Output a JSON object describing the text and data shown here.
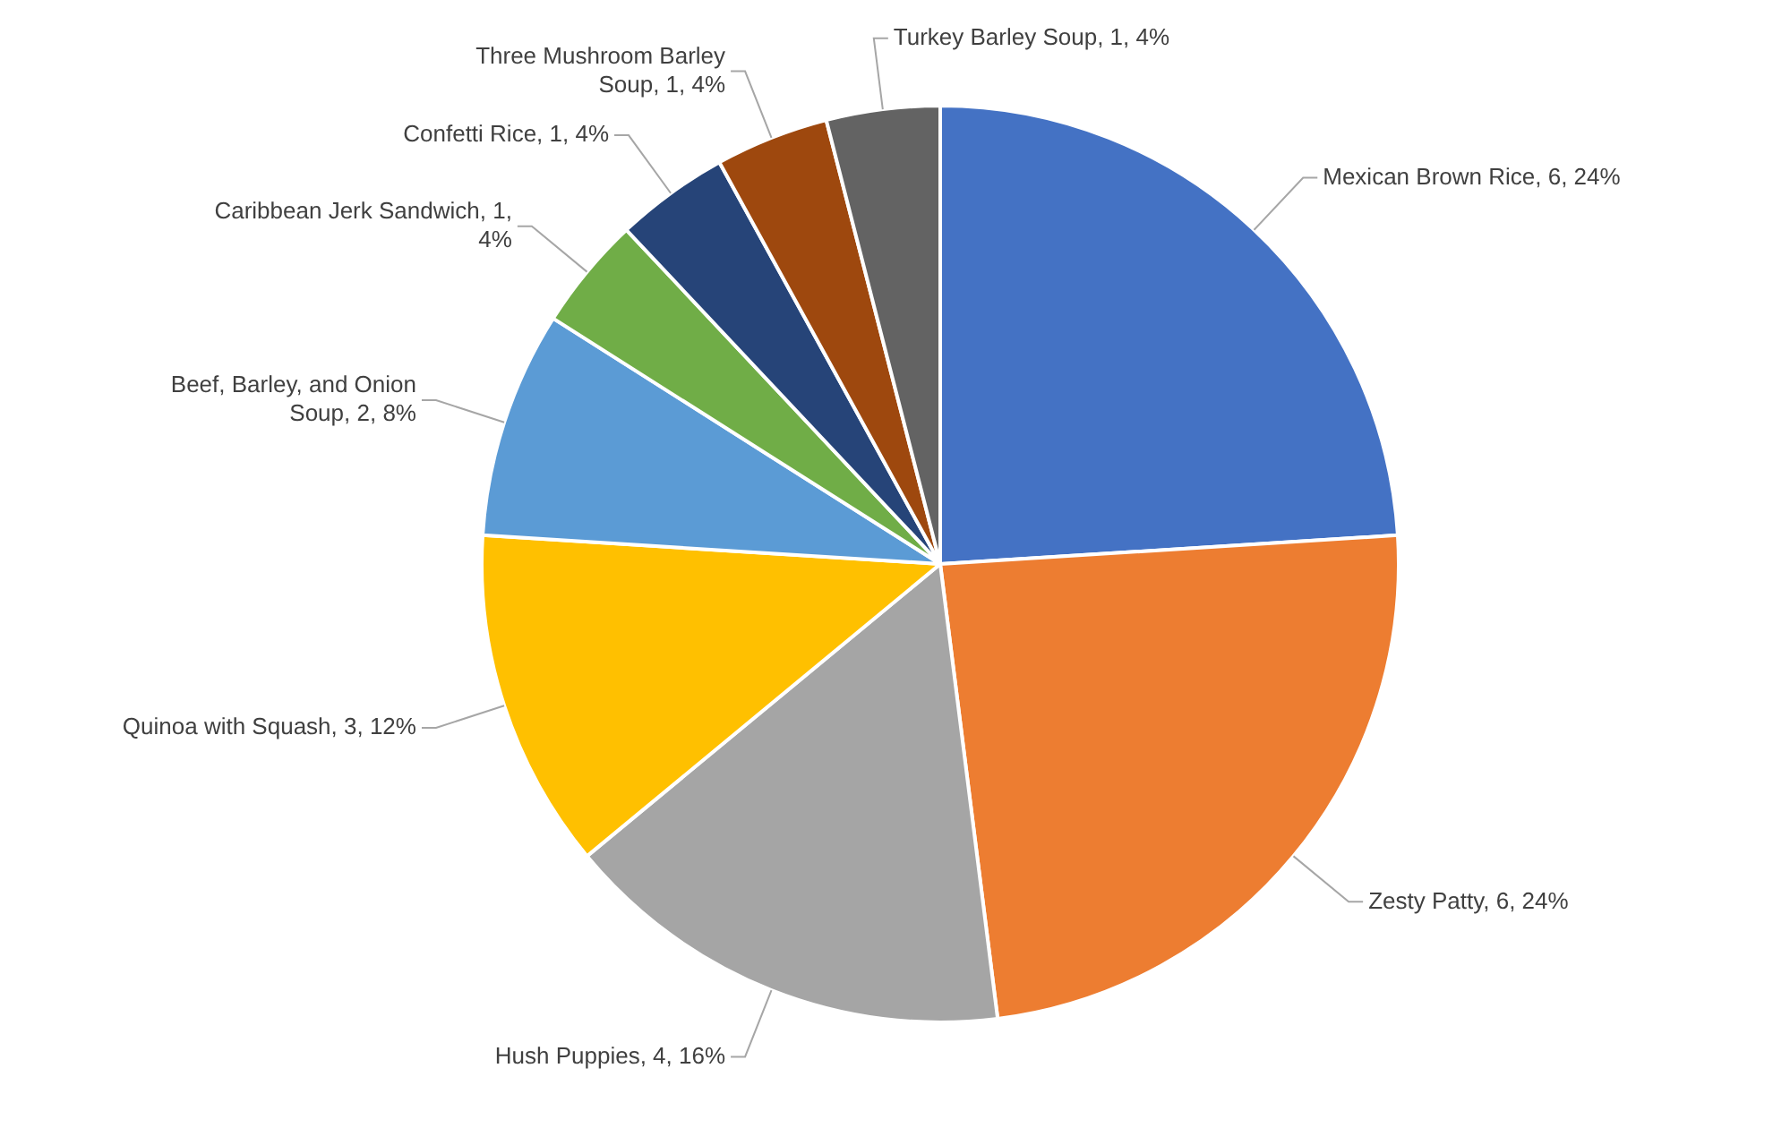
{
  "chart_data": {
    "type": "pie",
    "legend": false,
    "categories": [
      "Mexican Brown Rice",
      "Zesty Patty",
      "Hush Puppies",
      "Quinoa with Squash",
      "Beef, Barley, and Onion Soup",
      "Caribbean Jerk Sandwich",
      "Confetti Rice",
      "Three Mushroom Barley Soup",
      "Turkey Barley Soup"
    ],
    "values": [
      6,
      6,
      4,
      3,
      2,
      1,
      1,
      1,
      1
    ],
    "value_labels": [
      "6, 24%",
      "6, 24%",
      "4, 16%",
      "3, 12%",
      "2, 8%",
      "1, 4%",
      "1, 4%",
      "1, 4%",
      "1, 4%"
    ],
    "colors": [
      "#4472c4",
      "#ed7d31",
      "#a5a5a5",
      "#ffc000",
      "#5b9bd5",
      "#70ad47",
      "#264478",
      "#9e480e",
      "#636363"
    ]
  }
}
